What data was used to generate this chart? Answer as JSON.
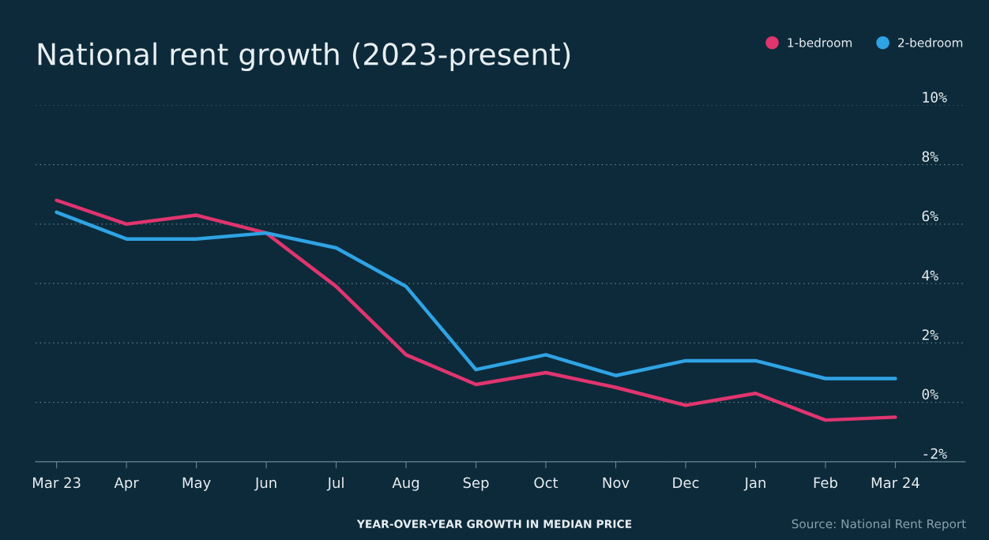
{
  "chart_data": {
    "type": "line",
    "title": "National rent growth (2023-present)",
    "categories": [
      "Mar 23",
      "Apr",
      "May",
      "Jun",
      "Jul",
      "Aug",
      "Sep",
      "Oct",
      "Nov",
      "Dec",
      "Jan",
      "Feb",
      "Mar 24"
    ],
    "series": [
      {
        "name": "1-bedroom",
        "color": "#e0356f",
        "values": [
          6.8,
          6.0,
          6.3,
          5.7,
          3.9,
          1.6,
          0.6,
          1.0,
          0.5,
          -0.1,
          0.3,
          -0.6,
          -0.5
        ]
      },
      {
        "name": "2-bedroom",
        "color": "#2fa3e4",
        "values": [
          6.4,
          5.5,
          5.5,
          5.7,
          5.2,
          3.9,
          1.1,
          1.6,
          0.9,
          1.4,
          1.4,
          0.8,
          0.8
        ]
      }
    ],
    "ylim": [
      -2,
      10
    ],
    "yticks": [
      {
        "value": -2,
        "label": "-2%"
      },
      {
        "value": 0,
        "label": "0%"
      },
      {
        "value": 2,
        "label": "2%"
      },
      {
        "value": 4,
        "label": "4%"
      },
      {
        "value": 6,
        "label": "6%"
      },
      {
        "value": 8,
        "label": "8%"
      },
      {
        "value": 10,
        "label": "10%"
      }
    ],
    "xlabel": "YEAR-OVER-YEAR GROWTH IN MEDIAN PRICE",
    "annotations": [
      "Source: National Rent Report"
    ],
    "grid": "y",
    "legend": "top right",
    "marker": "none",
    "line_style": "solid"
  }
}
